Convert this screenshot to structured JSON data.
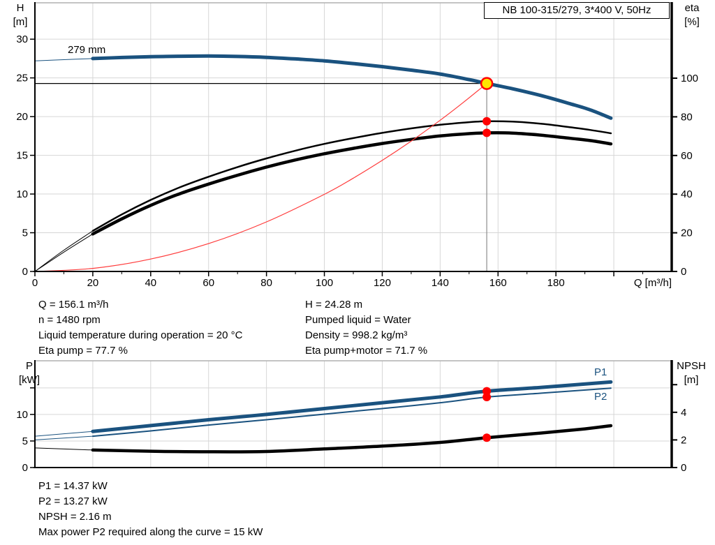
{
  "colors": {
    "blue": "#1a527f",
    "black": "#000000",
    "red": "#ff0000",
    "red_line": "#ff3a3a",
    "yellow": "#ffe600",
    "grid": "#d6d6d6",
    "gray_line": "#8c8c8c",
    "top_border": "#b0b0b0",
    "axis": "#000000"
  },
  "top_info": {
    "left": [
      "Q = 156.1 m³/h",
      "n = 1480 rpm",
      "Liquid temperature during operation = 20 °C",
      "Eta pump = 77.7 %"
    ],
    "right": [
      "H = 24.28 m",
      "Pumped liquid = Water",
      "Density = 998.2 kg/m³",
      "Eta pump+motor = 71.7 %"
    ]
  },
  "bottom_info": [
    "P1 = 14.37 kW",
    "P2 = 13.27 kW",
    "NPSH = 2.16 m",
    "Max power P2 required along the curve = 15 kW"
  ],
  "chart_data": [
    {
      "id": "hq-eta",
      "type": "line",
      "title": "NB 100-315/279, 3*400 V, 50Hz",
      "x": {
        "label": "Q [m³/h]",
        "min": 0,
        "max": 220,
        "major_ticks": [
          0,
          20,
          40,
          60,
          80,
          100,
          120,
          140,
          160,
          180,
          200
        ],
        "tick_labels": [
          "0",
          "20",
          "40",
          "60",
          "80",
          "100",
          "120",
          "140",
          "160",
          "180",
          ""
        ],
        "minor_step": 10,
        "grid_step": 20
      },
      "y_left": {
        "label_lines": [
          "H",
          "[m]"
        ],
        "min": 0,
        "max": 34.7,
        "ticks": [
          0,
          5,
          10,
          15,
          20,
          25,
          30
        ],
        "tick_labels": [
          "0",
          "5",
          "10",
          "15",
          "20",
          "25",
          "30"
        ],
        "grid": [
          5,
          10,
          15,
          20,
          25,
          30
        ]
      },
      "y_right": {
        "label_lines": [
          "eta",
          "[%]"
        ],
        "min": 0,
        "max": 139,
        "ticks": [
          0,
          20,
          40,
          60,
          80,
          100
        ],
        "tick_labels": [
          "0",
          "20",
          "40",
          "60",
          "80",
          "100"
        ]
      },
      "series": [
        {
          "name": "head-curve",
          "label": "279 mm",
          "axis": "left",
          "color": "blue",
          "width": 5,
          "thick_from": 20,
          "points": [
            [
              0,
              27.2
            ],
            [
              10,
              27.35
            ],
            [
              20,
              27.5
            ],
            [
              30,
              27.63
            ],
            [
              40,
              27.73
            ],
            [
              50,
              27.8
            ],
            [
              60,
              27.82
            ],
            [
              70,
              27.77
            ],
            [
              80,
              27.65
            ],
            [
              90,
              27.45
            ],
            [
              100,
              27.2
            ],
            [
              110,
              26.85
            ],
            [
              120,
              26.45
            ],
            [
              130,
              26.0
            ],
            [
              140,
              25.5
            ],
            [
              150,
              24.78
            ],
            [
              156.1,
              24.28
            ],
            [
              165,
              23.6
            ],
            [
              175,
              22.7
            ],
            [
              185,
              21.65
            ],
            [
              192,
              20.85
            ],
            [
              199,
              19.8
            ]
          ]
        },
        {
          "name": "eta-pump-curve",
          "label": "",
          "axis": "right",
          "color": "black",
          "width": 2.5,
          "thick_from": 20,
          "points": [
            [
              0,
              0
            ],
            [
              10,
              11
            ],
            [
              20,
              21
            ],
            [
              30,
              29.5
            ],
            [
              40,
              37
            ],
            [
              50,
              43.5
            ],
            [
              60,
              49
            ],
            [
              70,
              54
            ],
            [
              80,
              58.5
            ],
            [
              90,
              62.5
            ],
            [
              100,
              66
            ],
            [
              110,
              69
            ],
            [
              120,
              71.7
            ],
            [
              130,
              74
            ],
            [
              140,
              75.9
            ],
            [
              148,
              77
            ],
            [
              156.1,
              77.7
            ],
            [
              165,
              77.5
            ],
            [
              175,
              76.4
            ],
            [
              185,
              74.6
            ],
            [
              192,
              73.2
            ],
            [
              199,
              71.5
            ]
          ]
        },
        {
          "name": "eta-pump-motor-curve",
          "label": "",
          "axis": "right",
          "color": "black",
          "width": 4.5,
          "thick_from": 20,
          "points": [
            [
              0,
              0
            ],
            [
              10,
              10
            ],
            [
              20,
              19.4
            ],
            [
              30,
              27.2
            ],
            [
              40,
              34.2
            ],
            [
              50,
              40.2
            ],
            [
              60,
              45.2
            ],
            [
              70,
              49.8
            ],
            [
              80,
              54
            ],
            [
              90,
              57.7
            ],
            [
              100,
              60.9
            ],
            [
              110,
              63.7
            ],
            [
              120,
              66.2
            ],
            [
              130,
              68.3
            ],
            [
              140,
              70.1
            ],
            [
              148,
              71.1
            ],
            [
              156.1,
              71.7
            ],
            [
              165,
              71.6
            ],
            [
              175,
              70.5
            ],
            [
              185,
              68.9
            ],
            [
              192,
              67.7
            ],
            [
              199,
              66
            ]
          ]
        },
        {
          "name": "system-curve",
          "label": "",
          "axis": "left",
          "color": "red_line",
          "width": 1.2,
          "points": [
            [
              0,
              0
            ],
            [
              20,
              0.4
            ],
            [
              40,
              1.6
            ],
            [
              60,
              3.6
            ],
            [
              80,
              6.4
            ],
            [
              100,
              9.96
            ],
            [
              110,
              12.05
            ],
            [
              120,
              14.35
            ],
            [
              130,
              16.84
            ],
            [
              140,
              19.53
            ],
            [
              148,
              21.83
            ],
            [
              156.1,
              24.28
            ]
          ]
        }
      ],
      "duty_point": {
        "q": 156.1,
        "crosshair": {
          "h": 24.28
        },
        "markers": [
          {
            "q": 156.1,
            "v": 24.28,
            "axis": "left",
            "style": "duty"
          },
          {
            "q": 156.1,
            "v": 77.7,
            "axis": "right",
            "style": "dot"
          },
          {
            "q": 156.1,
            "v": 71.7,
            "axis": "right",
            "style": "dot"
          }
        ]
      }
    },
    {
      "id": "power-npsh",
      "type": "line",
      "title": "",
      "x": {
        "label": "",
        "min": 0,
        "max": 220,
        "major_ticks": [],
        "tick_labels": [],
        "minor_step": 0,
        "grid_step": 20
      },
      "y_left": {
        "label_lines": [
          "P",
          "[kW]"
        ],
        "min": 0,
        "max": 20.1,
        "ticks": [
          0,
          5,
          10,
          15
        ],
        "tick_labels": [
          "0",
          "5",
          "10",
          ""
        ],
        "grid": [
          5,
          10,
          15
        ]
      },
      "y_right": {
        "label_lines": [
          "NPSH",
          "[m]"
        ],
        "min": 0,
        "max": 7.73,
        "ticks": [
          0,
          2,
          4,
          6
        ],
        "tick_labels": [
          "0",
          "2",
          "4",
          ""
        ]
      },
      "series": [
        {
          "name": "p1-curve",
          "label": "P1",
          "axis": "left",
          "color": "blue",
          "width": 5,
          "thick_from": 20,
          "points": [
            [
              0,
              5.9
            ],
            [
              20,
              6.8
            ],
            [
              40,
              7.9
            ],
            [
              60,
              9.0
            ],
            [
              80,
              10.0
            ],
            [
              100,
              11.1
            ],
            [
              120,
              12.2
            ],
            [
              140,
              13.3
            ],
            [
              156.1,
              14.37
            ],
            [
              175,
              15.1
            ],
            [
              199,
              16.1
            ]
          ]
        },
        {
          "name": "p2-curve",
          "label": "P2",
          "axis": "left",
          "color": "blue",
          "width": 2,
          "thick_from": 20,
          "points": [
            [
              0,
              5.2
            ],
            [
              20,
              5.9
            ],
            [
              40,
              6.9
            ],
            [
              60,
              8.0
            ],
            [
              80,
              9.0
            ],
            [
              100,
              10.05
            ],
            [
              120,
              11.1
            ],
            [
              140,
              12.2
            ],
            [
              156.1,
              13.27
            ],
            [
              175,
              14.0
            ],
            [
              199,
              14.95
            ]
          ]
        },
        {
          "name": "npsh-curve",
          "label": "",
          "axis": "right",
          "color": "black",
          "width": 4.5,
          "thick_from": 20,
          "points": [
            [
              0,
              1.42
            ],
            [
              20,
              1.27
            ],
            [
              40,
              1.18
            ],
            [
              60,
              1.14
            ],
            [
              80,
              1.16
            ],
            [
              100,
              1.35
            ],
            [
              120,
              1.55
            ],
            [
              140,
              1.82
            ],
            [
              156.1,
              2.16
            ],
            [
              175,
              2.5
            ],
            [
              190,
              2.8
            ],
            [
              199,
              3.03
            ]
          ]
        }
      ],
      "duty_point": {
        "q": 156.1,
        "markers": [
          {
            "q": 156.1,
            "v": 14.37,
            "axis": "left",
            "style": "dot"
          },
          {
            "q": 156.1,
            "v": 13.27,
            "axis": "left",
            "style": "dot"
          },
          {
            "q": 156.1,
            "v": 2.16,
            "axis": "right",
            "style": "dot"
          }
        ]
      }
    }
  ]
}
